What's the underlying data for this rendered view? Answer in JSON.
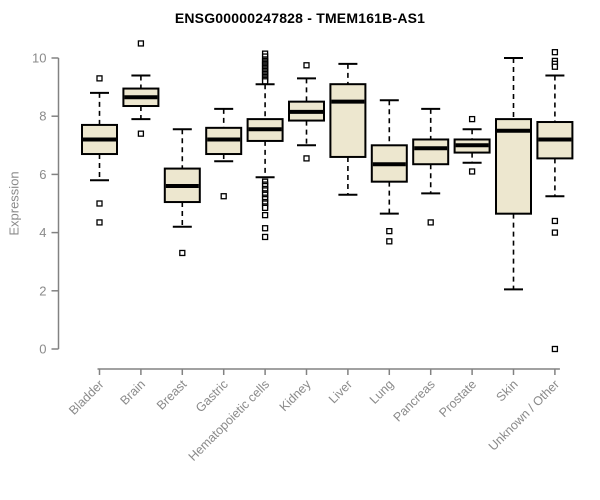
{
  "page": {
    "background": "#ffffff"
  },
  "chart_data": {
    "type": "boxplot",
    "title": "ENSG00000247828 - TMEM161B-AS1",
    "ylabel": "Expression",
    "xlabel": "",
    "ylim": [
      0,
      10
    ],
    "yticks": [
      0,
      2,
      4,
      6,
      8,
      10
    ],
    "grid": false,
    "legend": null,
    "marker": "open-square",
    "whisker_style": "dashed",
    "colors": {
      "box_fill": "#EDE7CF",
      "box_border": "#000000",
      "median": "#000000",
      "axis": "#828282",
      "tick_label": "#8a8a8a",
      "title": "#000000",
      "outlier_fill": "#ffffff"
    },
    "categories": [
      "Bladder",
      "Brain",
      "Breast",
      "Gastric",
      "Hematopoietic cells",
      "Kidney",
      "Liver",
      "Lung",
      "Pancreas",
      "Prostate",
      "Skin",
      "Unknown / Other"
    ],
    "series": [
      {
        "category": "Bladder",
        "whisker_low": 5.8,
        "q1": 6.7,
        "median": 7.2,
        "q3": 7.7,
        "whisker_high": 8.8,
        "outliers": [
          9.3,
          5.0,
          4.35
        ]
      },
      {
        "category": "Brain",
        "whisker_low": 7.9,
        "q1": 8.35,
        "median": 8.65,
        "q3": 8.95,
        "whisker_high": 9.4,
        "outliers": [
          10.5,
          7.4
        ]
      },
      {
        "category": "Breast",
        "whisker_low": 4.2,
        "q1": 5.05,
        "median": 5.6,
        "q3": 6.2,
        "whisker_high": 7.55,
        "outliers": [
          3.3
        ]
      },
      {
        "category": "Gastric",
        "whisker_low": 6.45,
        "q1": 6.7,
        "median": 7.2,
        "q3": 7.6,
        "whisker_high": 8.25,
        "outliers": [
          5.25
        ]
      },
      {
        "category": "Hematopoietic cells",
        "whisker_low": 5.9,
        "q1": 7.15,
        "median": 7.55,
        "q3": 7.9,
        "whisker_high": 9.1,
        "outliers": [
          10.15,
          10.05,
          9.95,
          9.9,
          9.85,
          9.8,
          9.75,
          9.7,
          9.65,
          9.6,
          9.55,
          9.5,
          9.45,
          9.4,
          9.35,
          9.3,
          9.25,
          9.2,
          5.75,
          5.65,
          5.6,
          5.5,
          5.45,
          5.35,
          5.3,
          5.2,
          5.15,
          5.05,
          5.0,
          4.9,
          4.85,
          4.6,
          4.15,
          3.85
        ]
      },
      {
        "category": "Kidney",
        "whisker_low": 7.0,
        "q1": 7.85,
        "median": 8.15,
        "q3": 8.5,
        "whisker_high": 9.3,
        "outliers": [
          9.75,
          6.55
        ]
      },
      {
        "category": "Liver",
        "whisker_low": 5.3,
        "q1": 6.6,
        "median": 8.5,
        "q3": 9.1,
        "whisker_high": 9.8,
        "outliers": []
      },
      {
        "category": "Lung",
        "whisker_low": 4.65,
        "q1": 5.75,
        "median": 6.35,
        "q3": 7.0,
        "whisker_high": 8.55,
        "outliers": [
          4.05,
          3.7
        ]
      },
      {
        "category": "Pancreas",
        "whisker_low": 5.35,
        "q1": 6.35,
        "median": 6.9,
        "q3": 7.2,
        "whisker_high": 8.25,
        "outliers": [
          4.35
        ]
      },
      {
        "category": "Prostate",
        "whisker_low": 6.4,
        "q1": 6.75,
        "median": 7.0,
        "q3": 7.2,
        "whisker_high": 7.55,
        "outliers": [
          7.9,
          6.1
        ]
      },
      {
        "category": "Skin",
        "whisker_low": 2.05,
        "q1": 4.65,
        "median": 7.5,
        "q3": 7.9,
        "whisker_high": 10.0,
        "outliers": []
      },
      {
        "category": "Unknown / Other",
        "whisker_low": 5.25,
        "q1": 6.55,
        "median": 7.2,
        "q3": 7.8,
        "whisker_high": 9.4,
        "outliers": [
          10.2,
          9.9,
          9.8,
          9.7,
          4.4,
          4.0,
          0
        ]
      }
    ]
  }
}
